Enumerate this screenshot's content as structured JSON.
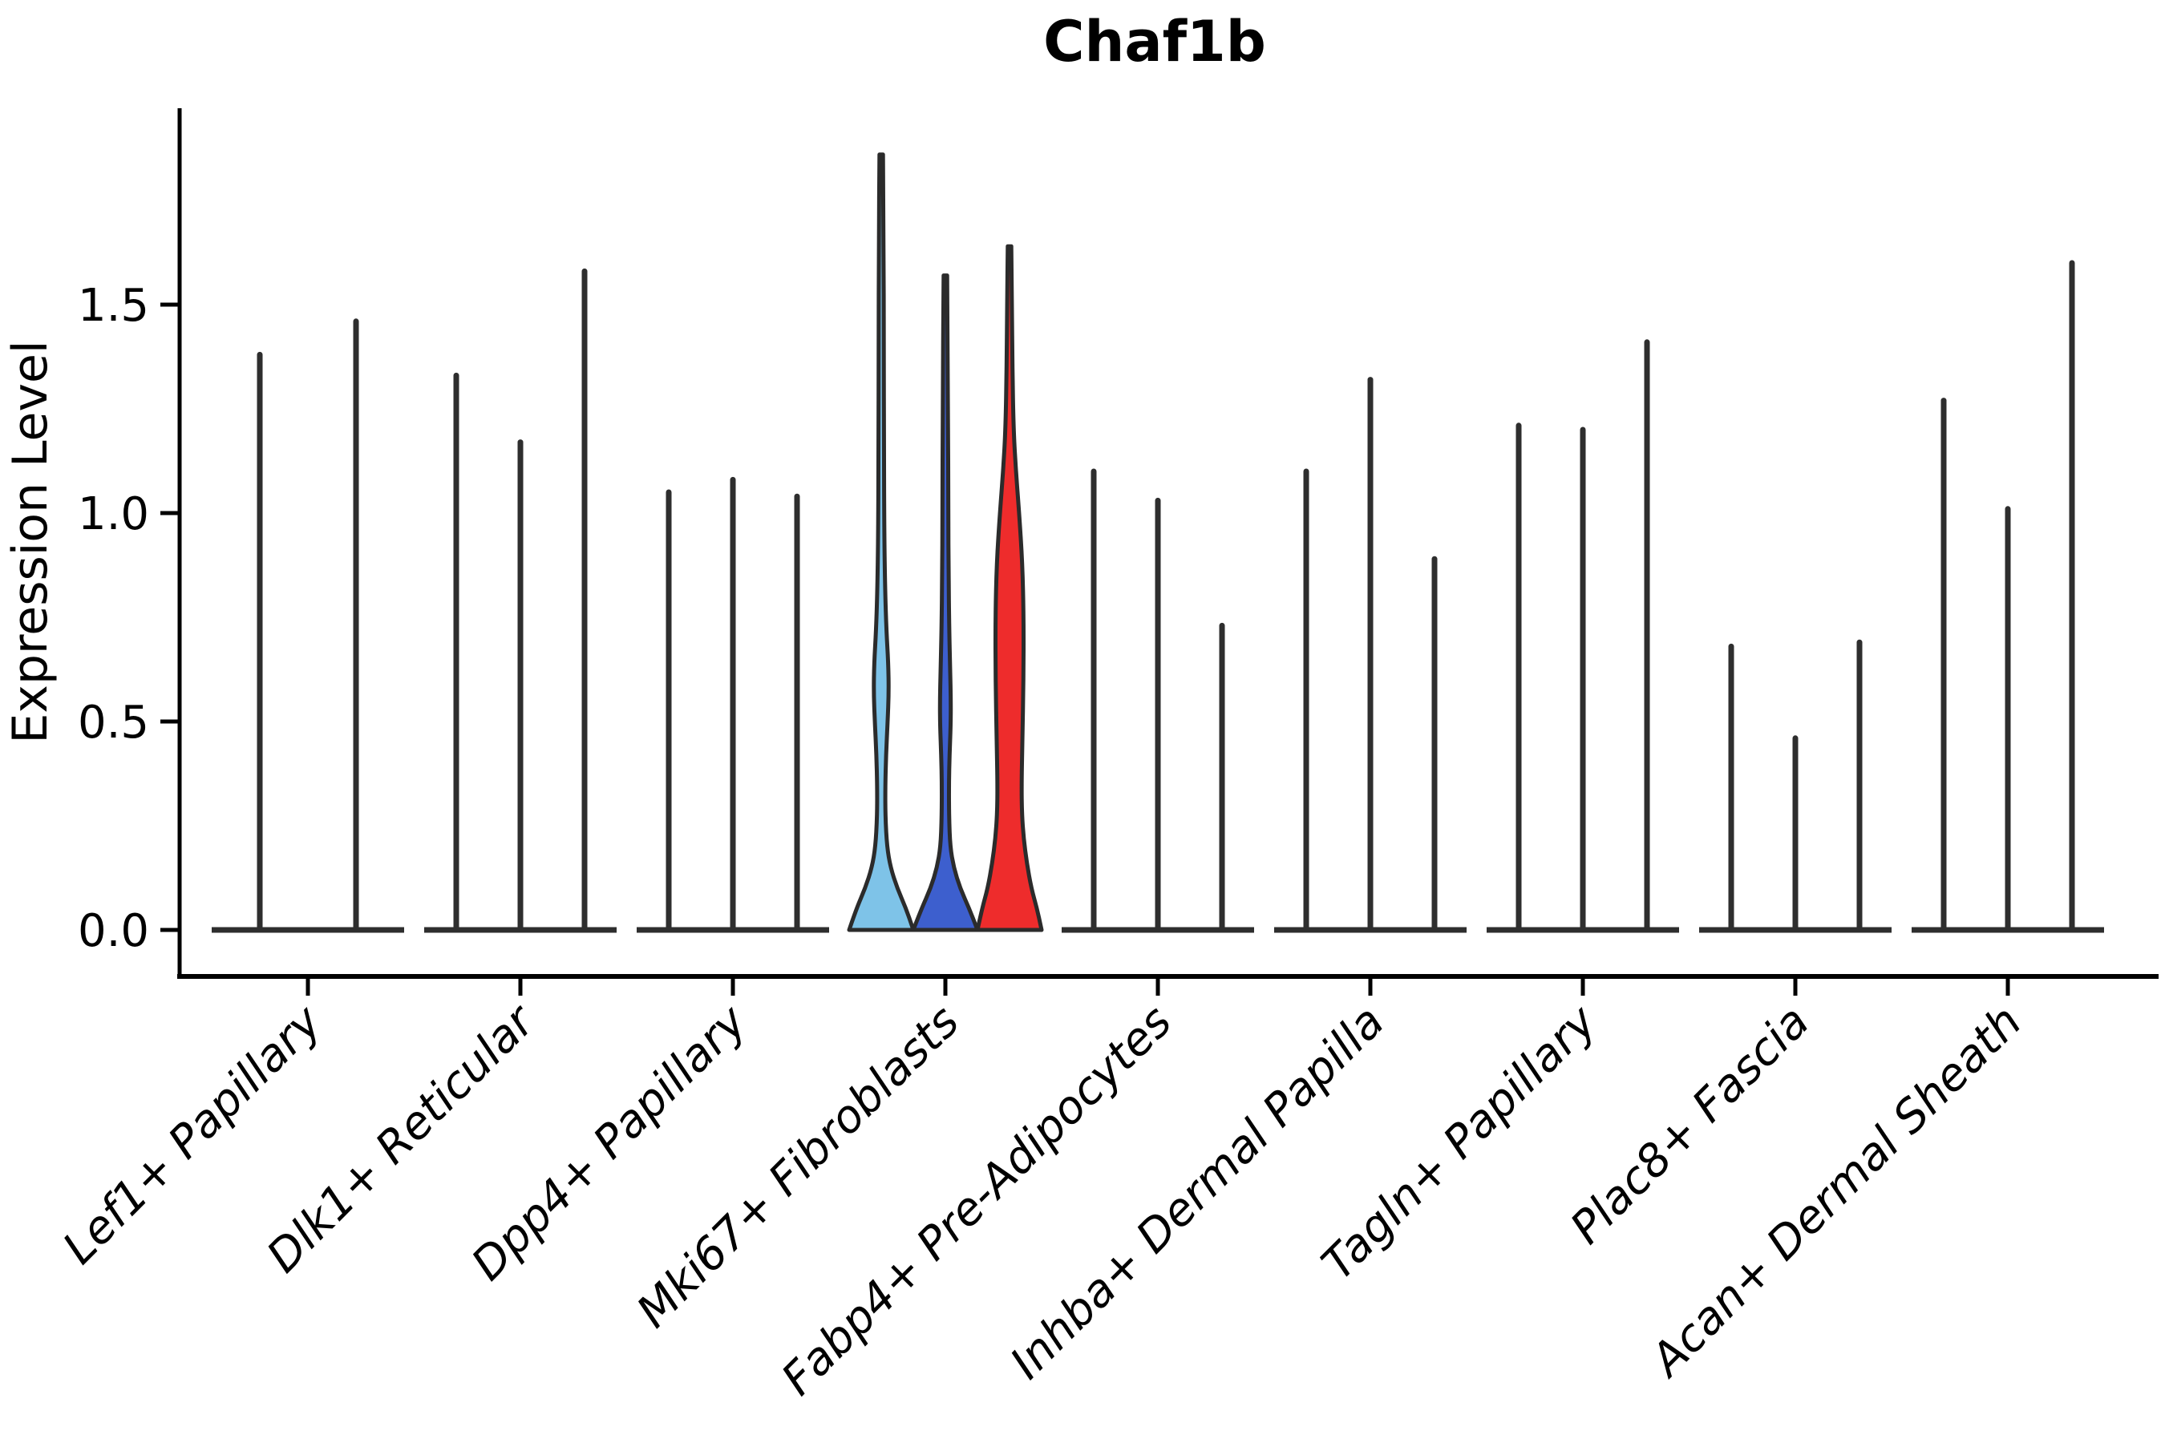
{
  "chart_data": {
    "type": "violin",
    "title": "Chaf1b",
    "xlabel": "",
    "ylabel": "Expression Level",
    "yticks": [
      "0.0",
      "0.5",
      "1.0",
      "1.5"
    ],
    "ytick_values": [
      0,
      0.5,
      1.0,
      1.5
    ],
    "ylim": [
      0,
      1.97
    ],
    "grid": false,
    "legend": "none",
    "colors": {
      "axis": "#000000",
      "outline": "#2b2b2b",
      "spike": "#2e2e2e",
      "text": "#000000",
      "highlight_light_blue": "#7EC3E8",
      "highlight_dark_blue": "#3D5FCE",
      "highlight_red": "#EE2C2C"
    },
    "categories": [
      {
        "label": "Lef1+ Papillary",
        "violins": [
          {
            "style": "spike",
            "peak": 1.38
          },
          {
            "style": "spike",
            "peak": 1.46
          }
        ]
      },
      {
        "label": "Dlk1+ Reticular",
        "violins": [
          {
            "style": "spike",
            "peak": 1.33
          },
          {
            "style": "spike",
            "peak": 1.17
          },
          {
            "style": "spike",
            "peak": 1.58
          }
        ]
      },
      {
        "label": "Dpp4+ Papillary",
        "violins": [
          {
            "style": "spike",
            "peak": 1.05
          },
          {
            "style": "spike",
            "peak": 1.08
          },
          {
            "style": "spike",
            "peak": 1.04
          }
        ]
      },
      {
        "label": "Mki67+ Fibroblasts",
        "violins": [
          {
            "style": "violin",
            "peak": 1.86,
            "color": "#7EC3E8",
            "profile": [
              [
                0,
                1.0
              ],
              [
                0.05,
                0.78
              ],
              [
                0.1,
                0.5
              ],
              [
                0.15,
                0.29
              ],
              [
                0.2,
                0.18
              ],
              [
                0.27,
                0.13
              ],
              [
                0.34,
                0.125
              ],
              [
                0.42,
                0.15
              ],
              [
                0.5,
                0.2
              ],
              [
                0.57,
                0.235
              ],
              [
                0.64,
                0.22
              ],
              [
                0.72,
                0.16
              ],
              [
                0.82,
                0.12
              ],
              [
                0.95,
                0.095
              ],
              [
                1.15,
                0.085
              ],
              [
                1.4,
                0.08
              ],
              [
                1.65,
                0.075
              ],
              [
                1.86,
                0.055
              ]
            ]
          },
          {
            "style": "violin",
            "peak": 1.57,
            "color": "#3D5FCE",
            "profile": [
              [
                0,
                1.0
              ],
              [
                0.05,
                0.75
              ],
              [
                0.1,
                0.46
              ],
              [
                0.15,
                0.26
              ],
              [
                0.2,
                0.15
              ],
              [
                0.27,
                0.115
              ],
              [
                0.35,
                0.11
              ],
              [
                0.42,
                0.13
              ],
              [
                0.49,
                0.165
              ],
              [
                0.55,
                0.17
              ],
              [
                0.62,
                0.15
              ],
              [
                0.72,
                0.12
              ],
              [
                0.85,
                0.1
              ],
              [
                1.0,
                0.09
              ],
              [
                1.25,
                0.085
              ],
              [
                1.57,
                0.055
              ]
            ]
          },
          {
            "style": "violin",
            "peak": 1.64,
            "color": "#EE2C2C",
            "profile": [
              [
                0,
                1.0
              ],
              [
                0.05,
                0.86
              ],
              [
                0.1,
                0.68
              ],
              [
                0.16,
                0.54
              ],
              [
                0.22,
                0.44
              ],
              [
                0.28,
                0.385
              ],
              [
                0.35,
                0.375
              ],
              [
                0.45,
                0.4
              ],
              [
                0.6,
                0.435
              ],
              [
                0.75,
                0.44
              ],
              [
                0.88,
                0.4
              ],
              [
                1.0,
                0.3
              ],
              [
                1.1,
                0.2
              ],
              [
                1.2,
                0.125
              ],
              [
                1.35,
                0.09
              ],
              [
                1.5,
                0.075
              ],
              [
                1.64,
                0.055
              ]
            ]
          }
        ]
      },
      {
        "label": "Fabp4+ Pre-Adipocytes",
        "violins": [
          {
            "style": "spike",
            "peak": 1.1
          },
          {
            "style": "spike",
            "peak": 1.03
          },
          {
            "style": "spike",
            "peak": 0.73
          }
        ]
      },
      {
        "label": "Inhba+ Dermal Papilla",
        "violins": [
          {
            "style": "spike",
            "peak": 1.1
          },
          {
            "style": "spike",
            "peak": 1.32
          },
          {
            "style": "spike",
            "peak": 0.89
          }
        ]
      },
      {
        "label": "Tagln+ Papillary",
        "violins": [
          {
            "style": "spike",
            "peak": 1.21
          },
          {
            "style": "spike",
            "peak": 1.2
          },
          {
            "style": "spike",
            "peak": 1.41
          }
        ]
      },
      {
        "label": "Plac8+ Fascia",
        "violins": [
          {
            "style": "spike",
            "peak": 0.68
          },
          {
            "style": "spike",
            "peak": 0.46
          },
          {
            "style": "spike",
            "peak": 0.69
          }
        ]
      },
      {
        "label": "Acan+ Dermal Sheath",
        "violins": [
          {
            "style": "spike",
            "peak": 1.27
          },
          {
            "style": "spike",
            "peak": 1.01
          },
          {
            "style": "spike",
            "peak": 1.6
          }
        ]
      }
    ]
  }
}
